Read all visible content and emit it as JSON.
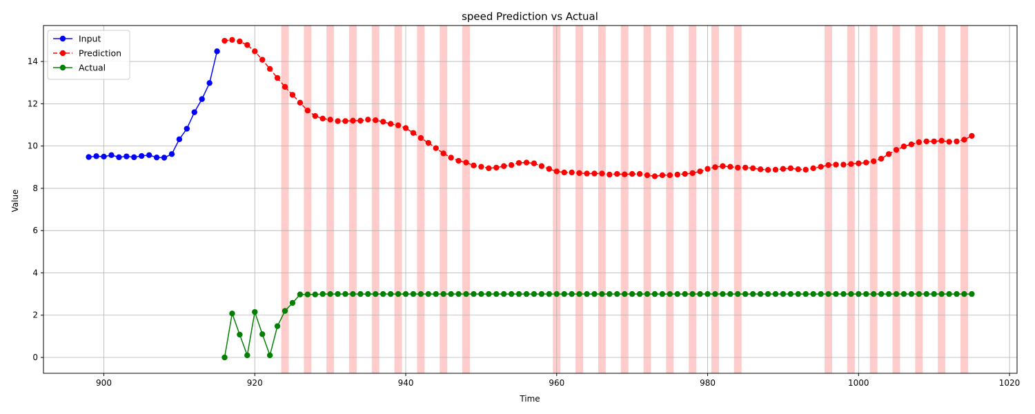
{
  "chart_data": {
    "type": "line",
    "title": "speed Prediction vs Actual",
    "xlabel": "Time",
    "ylabel": "Value",
    "xlim": [
      892,
      1021
    ],
    "ylim": [
      -0.75,
      15.7
    ],
    "xticks": [
      900,
      920,
      940,
      960,
      980,
      1000,
      1020
    ],
    "yticks": [
      0,
      2,
      4,
      6,
      8,
      10,
      12,
      14
    ],
    "grid": true,
    "legend_position": "top-left",
    "highlight_color": "#ffcccc",
    "highlight_intervals": [
      [
        923.5,
        924.5
      ],
      [
        926.5,
        927.5
      ],
      [
        929.5,
        930.5
      ],
      [
        932.5,
        933.5
      ],
      [
        935.5,
        936.5
      ],
      [
        938.5,
        939.5
      ],
      [
        941.5,
        942.5
      ],
      [
        944.5,
        945.5
      ],
      [
        947.5,
        948.5
      ],
      [
        959.5,
        960.5
      ],
      [
        962.5,
        963.5
      ],
      [
        965.5,
        966.5
      ],
      [
        968.5,
        969.5
      ],
      [
        971.5,
        972.5
      ],
      [
        974.5,
        975.5
      ],
      [
        977.5,
        978.5
      ],
      [
        980.5,
        981.5
      ],
      [
        983.5,
        984.5
      ],
      [
        995.5,
        996.5
      ],
      [
        998.5,
        999.5
      ],
      [
        1001.5,
        1002.5
      ],
      [
        1004.5,
        1005.5
      ],
      [
        1007.5,
        1008.5
      ],
      [
        1010.5,
        1011.5
      ],
      [
        1013.5,
        1014.5
      ]
    ],
    "series": [
      {
        "name": "Input",
        "color": "#0000ff",
        "dashed": false,
        "x_start": 898,
        "values": [
          9.48,
          9.52,
          9.5,
          9.57,
          9.47,
          9.51,
          9.47,
          9.53,
          9.57,
          9.46,
          9.45,
          9.62,
          10.32,
          10.82,
          11.6,
          12.22,
          12.98,
          14.48
        ]
      },
      {
        "name": "Prediction",
        "color": "#ff0000",
        "dashed": true,
        "x_start": 916,
        "values": [
          14.98,
          15.02,
          14.95,
          14.78,
          14.48,
          14.08,
          13.65,
          13.22,
          12.8,
          12.42,
          12.05,
          11.68,
          11.42,
          11.3,
          11.25,
          11.18,
          11.18,
          11.2,
          11.2,
          11.25,
          11.22,
          11.15,
          11.05,
          10.98,
          10.85,
          10.62,
          10.38,
          10.15,
          9.9,
          9.65,
          9.45,
          9.3,
          9.22,
          9.08,
          9.02,
          8.95,
          8.98,
          9.05,
          9.1,
          9.2,
          9.22,
          9.18,
          9.05,
          8.92,
          8.8,
          8.75,
          8.75,
          8.72,
          8.7,
          8.7,
          8.7,
          8.65,
          8.68,
          8.66,
          8.68,
          8.68,
          8.62,
          8.57,
          8.62,
          8.62,
          8.65,
          8.68,
          8.72,
          8.8,
          8.92,
          9.0,
          9.05,
          9.02,
          8.98,
          8.98,
          8.95,
          8.9,
          8.87,
          8.88,
          8.92,
          8.95,
          8.9,
          8.88,
          8.95,
          9.02,
          9.1,
          9.12,
          9.12,
          9.15,
          9.18,
          9.22,
          9.28,
          9.4,
          9.62,
          9.82,
          9.98,
          10.08,
          10.18,
          10.22,
          10.22,
          10.25,
          10.2,
          10.22,
          10.3,
          10.48
        ]
      },
      {
        "name": "Actual",
        "color": "#008000",
        "dashed": false,
        "x_start": 916,
        "values": [
          0.0,
          2.08,
          1.08,
          0.1,
          2.15,
          1.1,
          0.1,
          1.48,
          2.2,
          2.58,
          2.98,
          2.98,
          2.98,
          3.0,
          3.0,
          3.0,
          3.0,
          3.0,
          3.0,
          3.0,
          3.0,
          3.0,
          3.0,
          3.0,
          3.0,
          3.0,
          3.0,
          3.0,
          3.0,
          3.0,
          3.0,
          3.0,
          3.0,
          3.0,
          3.0,
          3.0,
          3.0,
          3.0,
          3.0,
          3.0,
          3.0,
          3.0,
          3.0,
          3.0,
          3.0,
          3.0,
          3.0,
          3.0,
          3.0,
          3.0,
          3.0,
          3.0,
          3.0,
          3.0,
          3.0,
          3.0,
          3.0,
          3.0,
          3.0,
          3.0,
          3.0,
          3.0,
          3.0,
          3.0,
          3.0,
          3.0,
          3.0,
          3.0,
          3.0,
          3.0,
          3.0,
          3.0,
          3.0,
          3.0,
          3.0,
          3.0,
          3.0,
          3.0,
          3.0,
          3.0,
          3.0,
          3.0,
          3.0,
          3.0,
          3.0,
          3.0,
          3.0,
          3.0,
          3.0,
          3.0,
          3.0,
          3.0,
          3.0,
          3.0,
          3.0,
          3.0,
          3.0,
          3.0,
          3.0,
          3.0
        ]
      }
    ]
  }
}
